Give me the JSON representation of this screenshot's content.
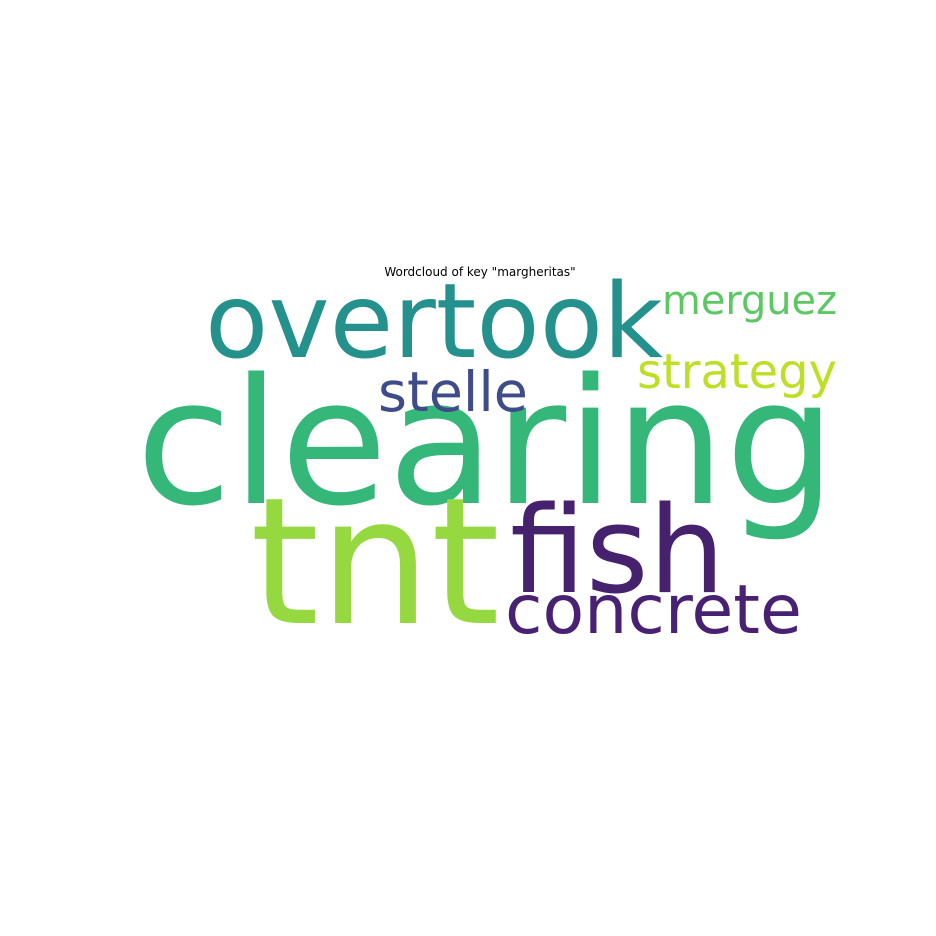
{
  "chart_data": {
    "type": "wordcloud",
    "title": "Wordcloud of key \"margheritas\"",
    "words": [
      {
        "text": "clearing",
        "weight": 1.0,
        "color": "#35b779"
      },
      {
        "text": "tnt",
        "weight": 0.92,
        "color": "#95d840"
      },
      {
        "text": "fish",
        "weight": 0.72,
        "color": "#46216d"
      },
      {
        "text": "overtook",
        "weight": 0.66,
        "color": "#25918c"
      },
      {
        "text": "concrete",
        "weight": 0.42,
        "color": "#482173"
      },
      {
        "text": "merguez",
        "weight": 0.33,
        "color": "#5cc863"
      },
      {
        "text": "strategy",
        "weight": 0.33,
        "color": "#bddf26"
      },
      {
        "text": "stelle",
        "weight": 0.3,
        "color": "#3e4c8a"
      }
    ]
  }
}
